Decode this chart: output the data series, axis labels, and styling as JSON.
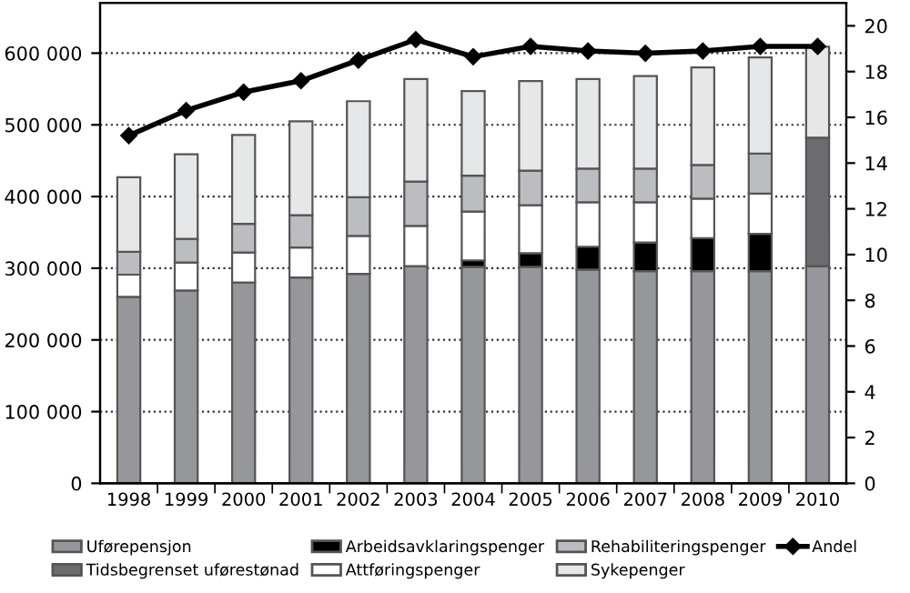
{
  "chart_data": {
    "type": "bar",
    "stacked": true,
    "categories": [
      "1998",
      "1999",
      "2000",
      "2001",
      "2002",
      "2003",
      "2004",
      "2005",
      "2006",
      "2007",
      "2008",
      "2009",
      "2010"
    ],
    "series": [
      {
        "name": "Uførepensjon",
        "color": "#96979b",
        "values": [
          260000,
          269000,
          280000,
          287000,
          292000,
          303000,
          302000,
          302000,
          298000,
          296000,
          296000,
          296000,
          303000
        ]
      },
      {
        "name": "Tidsbegrenset uførestønad",
        "color": "#6c6d70",
        "values": [
          null,
          null,
          null,
          null,
          null,
          null,
          null,
          null,
          null,
          null,
          null,
          null,
          179000
        ]
      },
      {
        "name": "Arbeidsavklaringspenger",
        "color": "#000000",
        "values": [
          null,
          null,
          null,
          null,
          null,
          null,
          9000,
          19000,
          32000,
          40000,
          46000,
          52000,
          null
        ]
      },
      {
        "name": "Attføringspenger",
        "color": "#ffffff",
        "values": [
          31000,
          39000,
          42000,
          42000,
          53000,
          56000,
          68000,
          67000,
          62000,
          56000,
          55000,
          56000,
          null
        ]
      },
      {
        "name": "Rehabiliteringspenger",
        "color": "#bcbdc0",
        "values": [
          32000,
          33000,
          40000,
          45000,
          54000,
          62000,
          50000,
          48000,
          47000,
          47000,
          47000,
          56000,
          null
        ]
      },
      {
        "name": "Sykepenger",
        "color": "#e6e7e8",
        "values": [
          104000,
          118000,
          124000,
          131000,
          134000,
          143000,
          118000,
          125000,
          125000,
          129000,
          136000,
          134000,
          127000
        ]
      },
      {
        "name": "Andel",
        "type": "line",
        "axis": "y2",
        "color": "#000000",
        "marker": "diamond",
        "values": [
          15.2,
          16.3,
          17.1,
          17.6,
          18.5,
          19.4,
          18.65,
          19.1,
          18.9,
          18.8,
          18.9,
          19.1,
          19.1
        ]
      }
    ],
    "ylim": [
      0,
      670000
    ],
    "yticks": [
      {
        "value": 0,
        "label": "0"
      },
      {
        "value": 100000,
        "label": "100 000"
      },
      {
        "value": 200000,
        "label": "200 000"
      },
      {
        "value": 300000,
        "label": "300 000"
      },
      {
        "value": 400000,
        "label": "400 000"
      },
      {
        "value": 500000,
        "label": "500 000"
      },
      {
        "value": 600000,
        "label": "600 000"
      }
    ],
    "y2lim": [
      0,
      21
    ],
    "y2ticks": [
      0,
      2,
      4,
      6,
      8,
      10,
      12,
      14,
      16,
      18,
      20
    ],
    "grid": "y",
    "legend": "bottom"
  }
}
